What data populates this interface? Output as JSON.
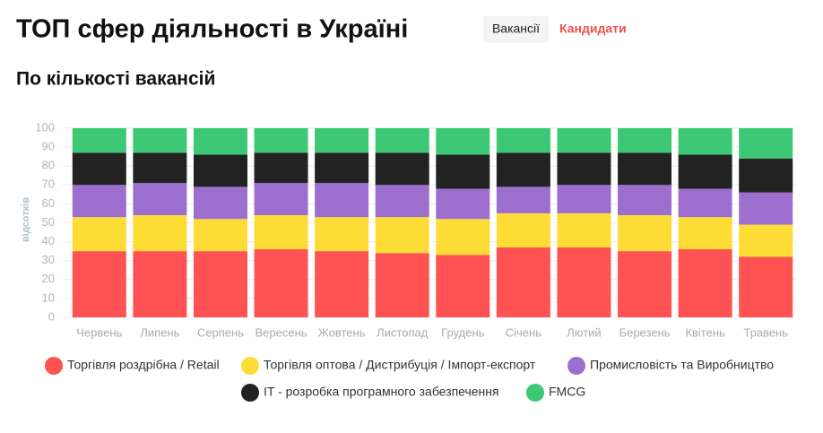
{
  "header": {
    "title": "ТОП сфер діяльності в Україні",
    "tabs": [
      "Вакансії",
      "Кандидати"
    ]
  },
  "chart_data": {
    "type": "stacked_bar",
    "title": "По кількості вакансій",
    "y_label": "відсотків",
    "categories": [
      "Червень",
      "Липень",
      "Серпень",
      "Вересень",
      "Жовтень",
      "Листопад",
      "Грудень",
      "Січень",
      "Лютий",
      "Березень",
      "Квітень",
      "Травень"
    ],
    "series": [
      {
        "name": "Торгівля роздрібна / Retail",
        "color": "#ff5252",
        "values": [
          35,
          35,
          35,
          36,
          35,
          34,
          33,
          37,
          37,
          35,
          36,
          32
        ]
      },
      {
        "name": "Торгівля оптова / Дистрибуція / Імпорт-експорт",
        "color": "#fddd35",
        "values": [
          18,
          19,
          17,
          18,
          18,
          19,
          19,
          18,
          18,
          19,
          17,
          17
        ]
      },
      {
        "name": "Промисловість та Виробництво",
        "color": "#9c6fce",
        "values": [
          17,
          17,
          17,
          17,
          18,
          17,
          16,
          14,
          15,
          16,
          15,
          17
        ]
      },
      {
        "name": "IT - розробка програмного забезпечення",
        "color": "#222222",
        "values": [
          17,
          16,
          17,
          16,
          16,
          17,
          18,
          18,
          17,
          17,
          18,
          18
        ]
      },
      {
        "name": "FMCG",
        "color": "#3cc874",
        "values": [
          13,
          13,
          14,
          13,
          13,
          13,
          14,
          13,
          13,
          13,
          14,
          16
        ]
      }
    ],
    "ylim": [
      0,
      100
    ],
    "yticks": [
      0,
      10,
      20,
      30,
      40,
      50,
      60,
      70,
      80,
      90,
      100
    ],
    "grid": true
  }
}
